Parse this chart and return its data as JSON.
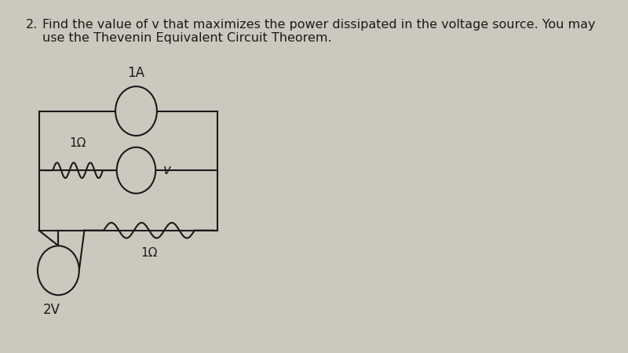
{
  "title_number": "2.",
  "title_text": "Find the value of v that maximizes the power dissipated in the voltage source. You may\nuse the Thevenin Equivalent Circuit Theorem.",
  "title_fontsize": 11.5,
  "bg_color": "#ccc8be",
  "text_color": "#1a1a1a",
  "labels": {
    "current_source": "1A",
    "voltage_v": "v",
    "voltage_2v": "2V",
    "resistor_top": "1Ω",
    "resistor_bot": "1Ω"
  }
}
